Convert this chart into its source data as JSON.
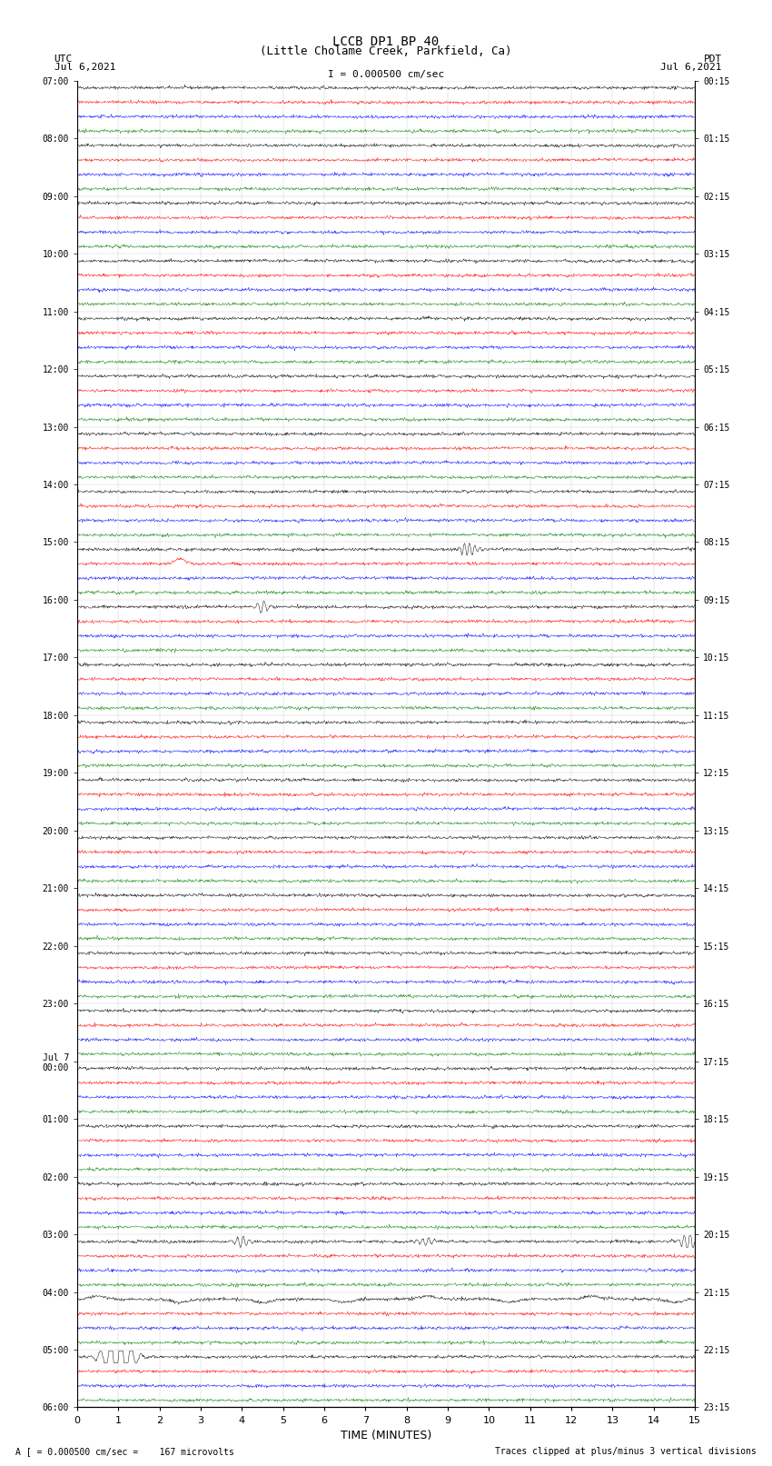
{
  "title_line1": "LCCB DP1 BP 40",
  "title_line2": "(Little Cholame Creek, Parkfield, Ca)",
  "scale_label": "I = 0.000500 cm/sec",
  "left_label_top": "UTC",
  "left_label_date": "Jul 6,2021",
  "right_label_top": "PDT",
  "right_label_date": "Jul 6,2021",
  "xlabel": "TIME (MINUTES)",
  "footer_left": "A [ = 0.000500 cm/sec =    167 microvolts",
  "footer_right": "Traces clipped at plus/minus 3 vertical divisions",
  "xlim": [
    0,
    15
  ],
  "xticks": [
    0,
    1,
    2,
    3,
    4,
    5,
    6,
    7,
    8,
    9,
    10,
    11,
    12,
    13,
    14,
    15
  ],
  "num_hours": 23,
  "rows_per_hour": 4,
  "colors": [
    "black",
    "red",
    "blue",
    "green"
  ],
  "background_color": "white",
  "noise_scale": 0.055,
  "fig_width": 8.5,
  "fig_height": 16.13,
  "dpi": 100,
  "left_tick_hour_labels": [
    "07:00",
    "08:00",
    "09:00",
    "10:00",
    "11:00",
    "12:00",
    "13:00",
    "14:00",
    "15:00",
    "16:00",
    "17:00",
    "18:00",
    "19:00",
    "20:00",
    "21:00",
    "22:00",
    "23:00",
    "Jul 7\n00:00",
    "01:00",
    "02:00",
    "03:00",
    "04:00",
    "05:00",
    "06:00"
  ],
  "right_tick_hour_labels": [
    "00:15",
    "01:15",
    "02:15",
    "03:15",
    "04:15",
    "05:15",
    "06:15",
    "07:15",
    "08:15",
    "09:15",
    "10:15",
    "11:15",
    "12:15",
    "13:15",
    "14:15",
    "15:15",
    "16:15",
    "17:15",
    "18:15",
    "19:15",
    "20:15",
    "21:15",
    "22:15",
    "23:15"
  ]
}
